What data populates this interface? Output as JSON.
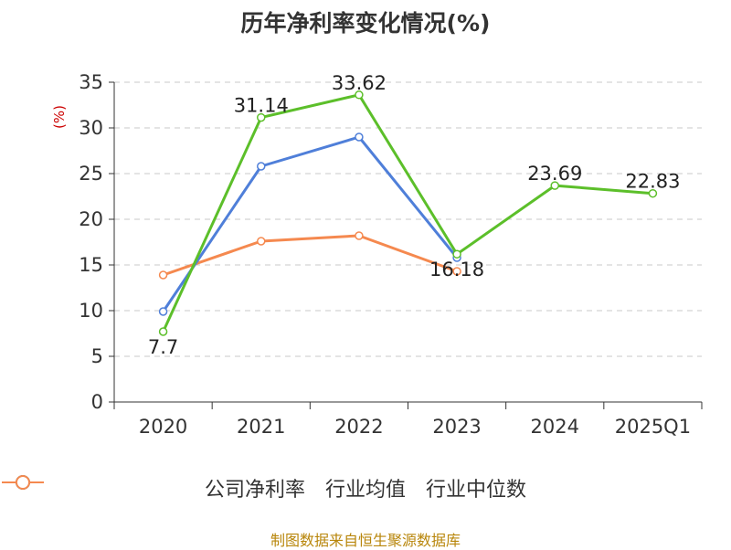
{
  "title": "历年净利率变化情况(%)",
  "source": "制图数据来自恒生聚源数据库",
  "chart_data": {
    "type": "line",
    "title": "历年净利率变化情况(%)",
    "ylabel": "(%)",
    "xlabel": "",
    "ylim": [
      0,
      35
    ],
    "yticks": [
      0,
      5,
      10,
      15,
      20,
      25,
      30,
      35
    ],
    "categories": [
      "2020",
      "2021",
      "2022",
      "2023",
      "2024",
      "2025Q1"
    ],
    "grid": true,
    "legend_position": "bottom",
    "series": [
      {
        "name": "公司净利率",
        "color": "#5cbf2a",
        "values": [
          7.7,
          31.14,
          33.62,
          16.18,
          23.69,
          22.83
        ],
        "labels": [
          "7.7",
          "31.14",
          "33.62",
          "16.18",
          "23.69",
          "22.83"
        ]
      },
      {
        "name": "行业均值",
        "color": "#4f7fd9",
        "values": [
          9.9,
          25.8,
          29.0,
          15.8,
          null,
          null
        ]
      },
      {
        "name": "行业中位数",
        "color": "#f5894f",
        "values": [
          13.9,
          17.6,
          18.2,
          14.3,
          null,
          null
        ]
      }
    ]
  }
}
